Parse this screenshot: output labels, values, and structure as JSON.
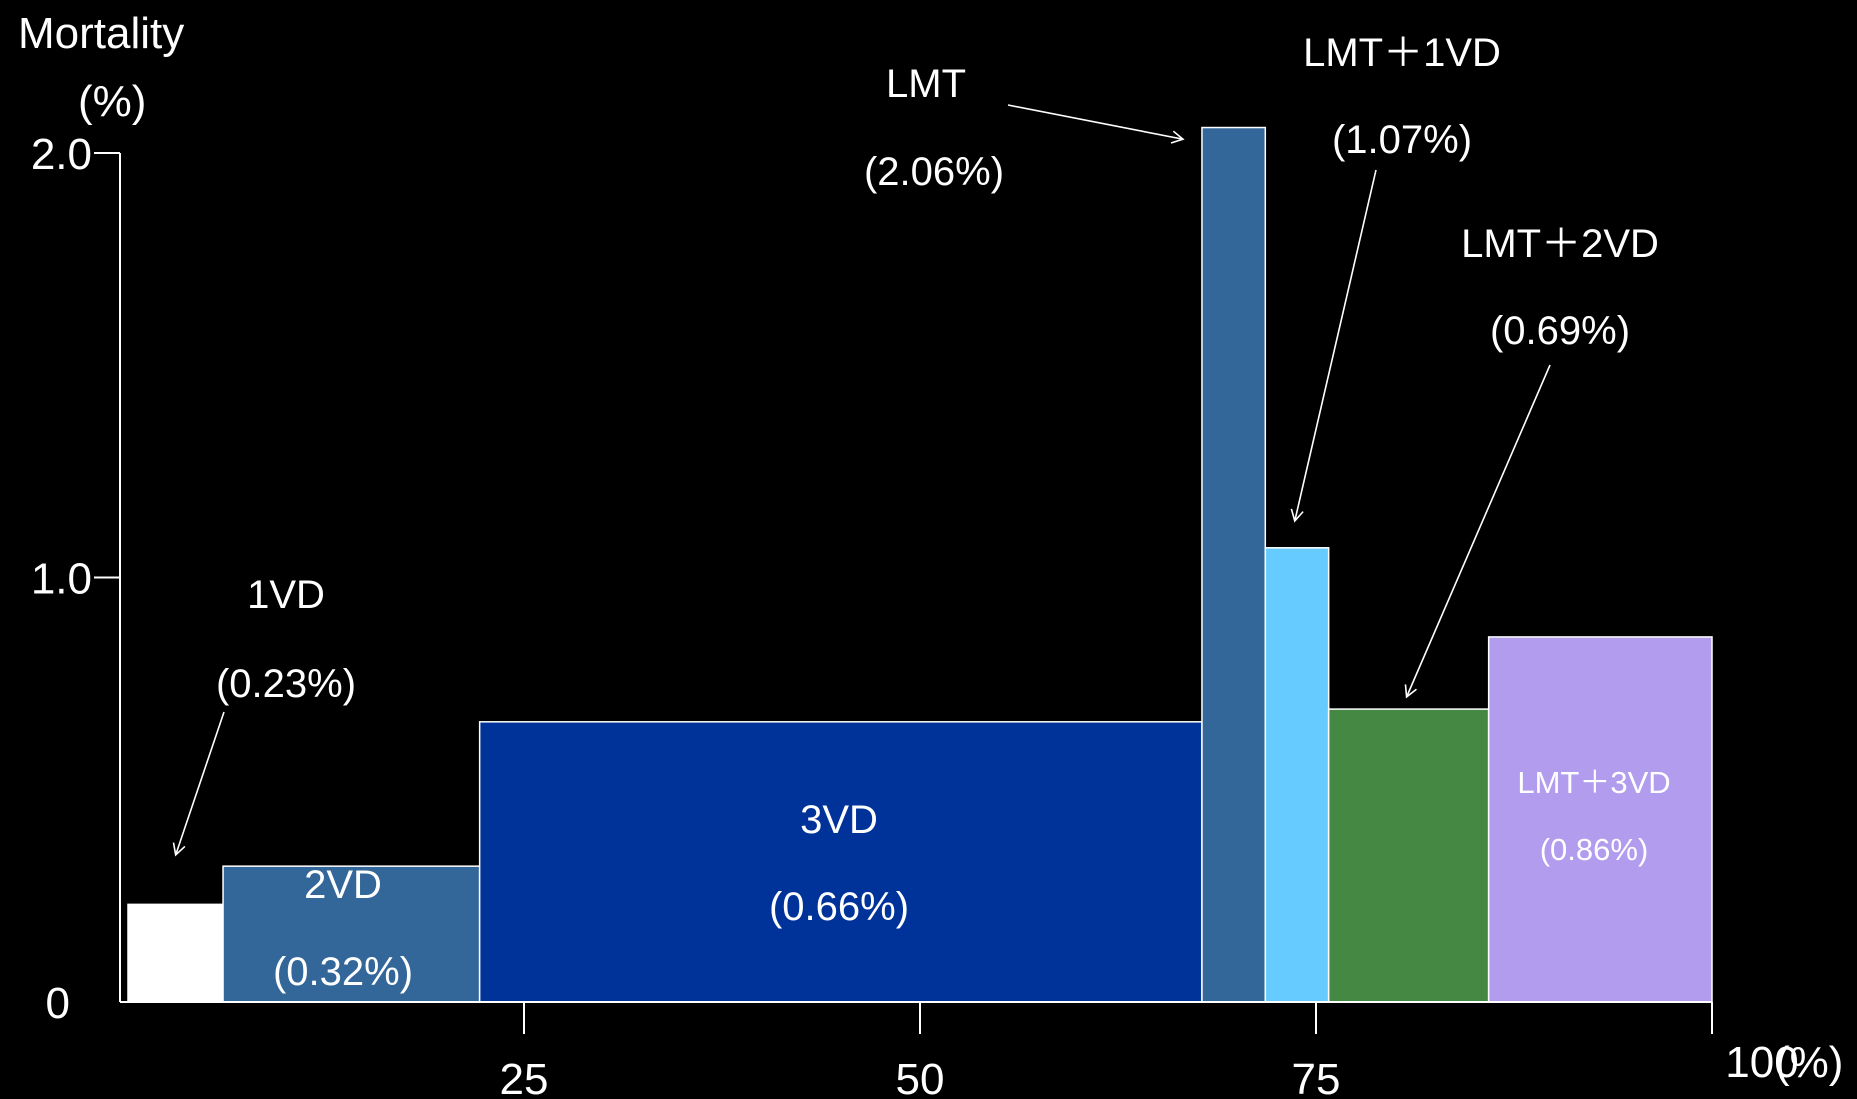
{
  "chart_data": {
    "type": "bar",
    "title": "",
    "ylabel_line1": "Mortality",
    "ylabel_line2": "(%)",
    "xlabel": "",
    "x_unit_label": "(%)",
    "ylim": [
      0,
      2.0
    ],
    "xlim": [
      0,
      100
    ],
    "y_ticks": [
      {
        "value": 0,
        "label": "0"
      },
      {
        "value": 1.0,
        "label": "1.0"
      },
      {
        "value": 2.0,
        "label": "2.0"
      }
    ],
    "x_ticks": [
      {
        "value": 25,
        "label": "25"
      },
      {
        "value": 50,
        "label": "50"
      },
      {
        "value": 75,
        "label": "75"
      },
      {
        "value": 100,
        "label": "100"
      }
    ],
    "series": [
      {
        "category": "1VD",
        "value_label": "(0.23%)",
        "x_start": 0,
        "x_end": 6,
        "mortality": 0.23,
        "color": "#ffffff"
      },
      {
        "category": "2VD",
        "value_label": "(0.32%)",
        "x_start": 6,
        "x_end": 22.2,
        "mortality": 0.32,
        "color": "#336699"
      },
      {
        "category": "3VD",
        "value_label": "(0.66%)",
        "x_start": 22.2,
        "x_end": 67.8,
        "mortality": 0.66,
        "color": "#003399"
      },
      {
        "category": "LMT",
        "value_label": "(2.06%)",
        "x_start": 67.8,
        "x_end": 71.8,
        "mortality": 2.06,
        "color": "#336699"
      },
      {
        "category": "LMT＋1VD",
        "value_label": "(1.07%)",
        "x_start": 71.8,
        "x_end": 75.8,
        "mortality": 1.07,
        "color": "#66ccff"
      },
      {
        "category": "LMT＋2VD",
        "value_label": "(0.69%)",
        "x_start": 75.8,
        "x_end": 85.9,
        "mortality": 0.69,
        "color": "#448844"
      },
      {
        "category": "LMT＋3VD",
        "value_label": "(0.86%)",
        "x_start": 85.9,
        "x_end": 100,
        "mortality": 0.86,
        "color": "#b19cee"
      }
    ]
  }
}
